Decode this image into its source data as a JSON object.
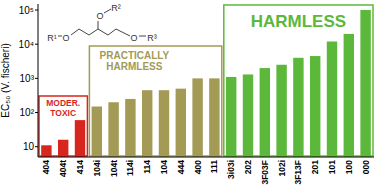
{
  "chart_data": {
    "type": "bar",
    "y_label": "EC₅₀ (V. fischeri)",
    "categories": [
      "404",
      "404t",
      "414",
      "104i",
      "104t",
      "114i",
      "114",
      "104",
      "444",
      "400",
      "111",
      "3i03i",
      "202",
      "3F03F",
      "102i",
      "3F13F",
      "201",
      "101",
      "100",
      "000"
    ],
    "values": [
      11,
      16,
      60,
      150,
      200,
      250,
      450,
      450,
      500,
      1000,
      1000,
      1100,
      1300,
      2000,
      2500,
      4000,
      4500,
      12000,
      20000,
      100000
    ],
    "colors": [
      "#d7261e",
      "#d7261e",
      "#d7261e",
      "#a39a55",
      "#a39a55",
      "#a39a55",
      "#a39a55",
      "#a39a55",
      "#a39a55",
      "#a39a55",
      "#a39a55",
      "#5cb83a",
      "#5cb83a",
      "#5cb83a",
      "#5cb83a",
      "#5cb83a",
      "#5cb83a",
      "#5cb83a",
      "#5cb83a",
      "#5cb83a"
    ],
    "annotations": [
      {
        "text": [
          "MODER.",
          "TOXIC"
        ],
        "color": "#d7261e"
      },
      {
        "text": [
          "PRACTICALLY",
          "HARMLESS"
        ],
        "color": "#a39a55"
      },
      {
        "text": [
          "HARMLESS"
        ],
        "color": "#5cb83a"
      }
    ],
    "structure_labels": [
      "R¹",
      "O",
      "O",
      "R²",
      "O",
      "R³"
    ],
    "log": "y",
    "grid": false,
    "ylim": [
      5,
      150000
    ],
    "yticks": [
      10,
      {
        "value": 100,
        "label": "10²"
      },
      {
        "value": 1000,
        "label": "10³"
      },
      {
        "value": 10000,
        "label": "10⁴"
      },
      {
        "value": 100000,
        "label": "10⁵"
      }
    ]
  }
}
